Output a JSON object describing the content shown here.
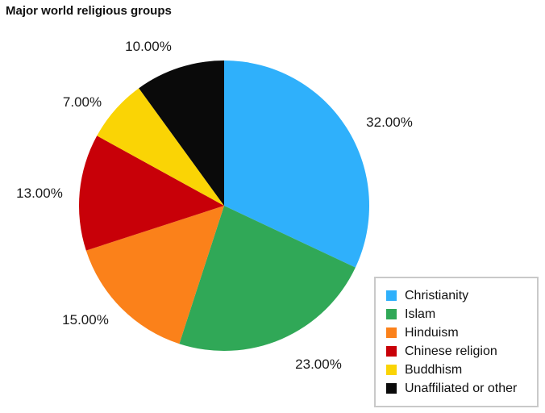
{
  "page": {
    "background_color": "#ffffff"
  },
  "chart_data": {
    "type": "pie",
    "title": "Major world religious groups",
    "start_angle_deg": 0,
    "direction": "clockwise",
    "legend_position": "bottom-right",
    "legend_border_color": "#c9c9c9",
    "label_color": "#1a1a1a",
    "categories": [
      "Christianity",
      "Islam",
      "Hinduism",
      "Chinese religion",
      "Buddhism",
      "Unaffiliated or other"
    ],
    "values": [
      32,
      23,
      15,
      13,
      7,
      10
    ],
    "slices": [
      {
        "label": "Christianity",
        "value": 32,
        "pct_label": "32.00%",
        "color": "#2FB0FB"
      },
      {
        "label": "Islam",
        "value": 23,
        "pct_label": "23.00%",
        "color": "#30A857"
      },
      {
        "label": "Hinduism",
        "value": 15,
        "pct_label": "15.00%",
        "color": "#FB811A"
      },
      {
        "label": "Chinese religion",
        "value": 13,
        "pct_label": "13.00%",
        "color": "#C80008"
      },
      {
        "label": "Buddhism",
        "value": 7,
        "pct_label": "7.00%",
        "color": "#FAD405"
      },
      {
        "label": "Unaffiliated or other",
        "value": 10,
        "pct_label": "10.00%",
        "color": "#0A0A0A"
      }
    ]
  }
}
